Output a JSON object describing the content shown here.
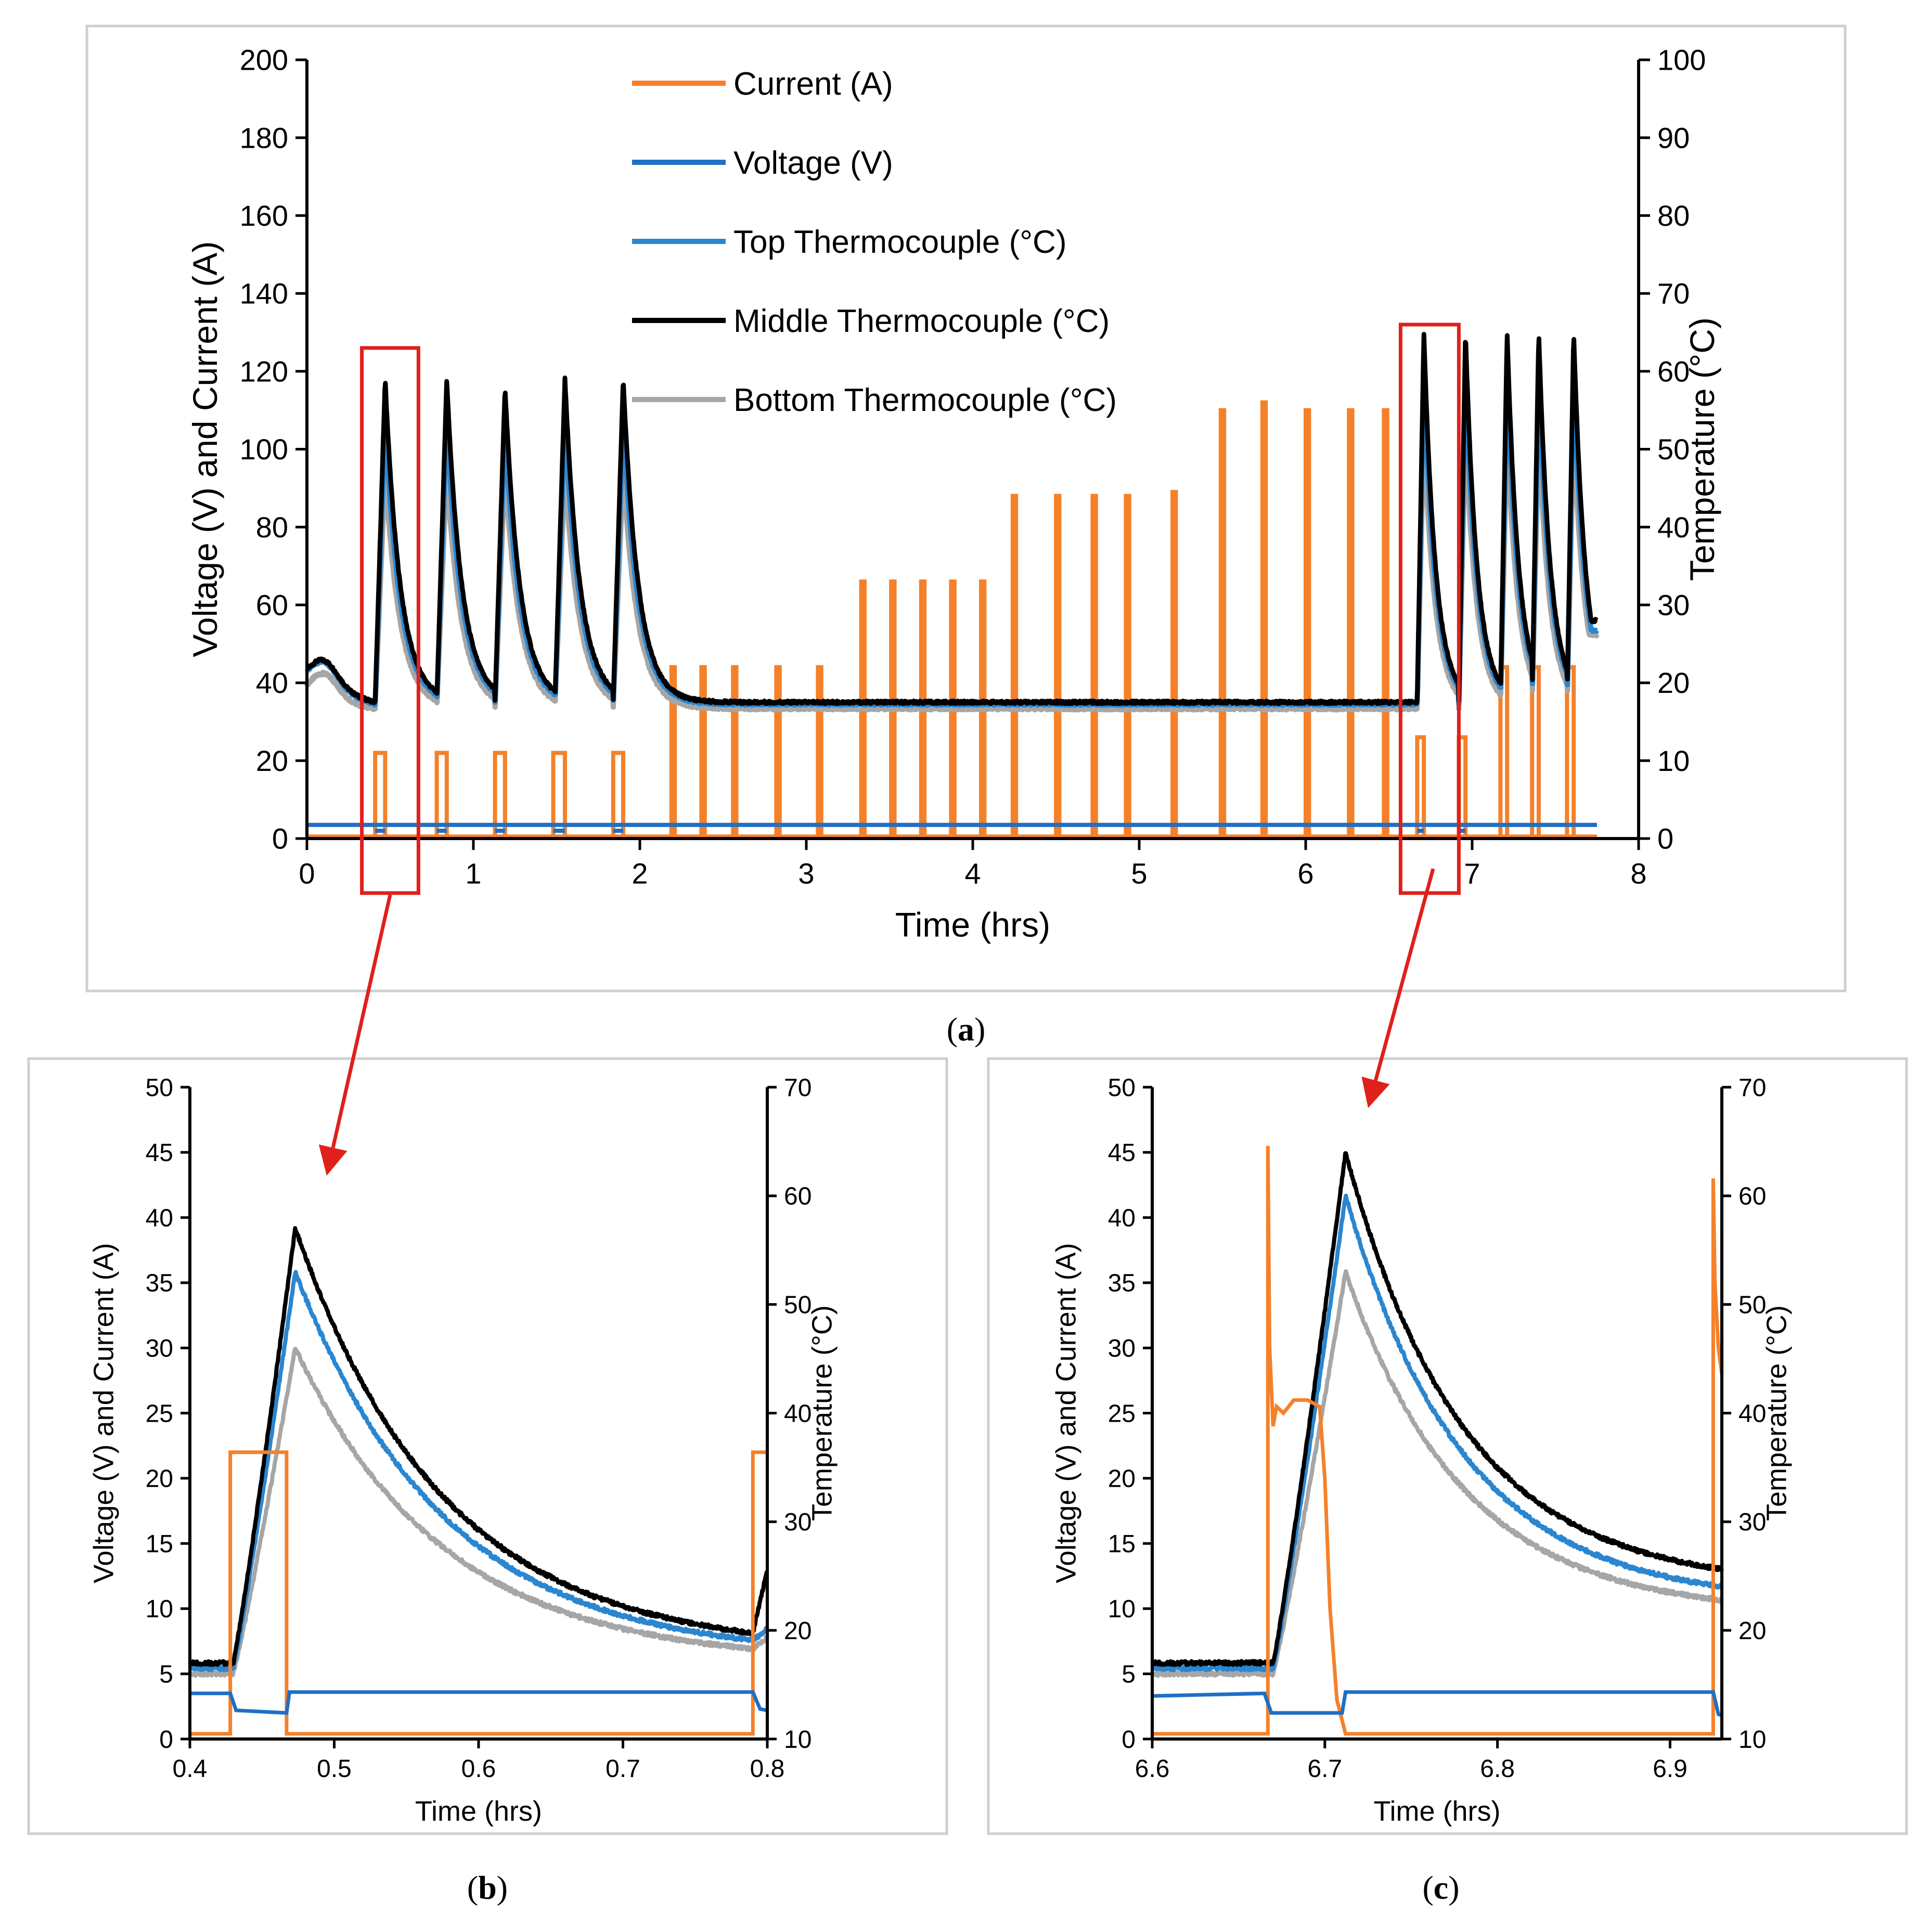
{
  "captions": {
    "a": "(a)",
    "b": "(b)",
    "c": "(c)",
    "bold_a": "a",
    "bold_b": "b",
    "bold_c": "c"
  },
  "colors": {
    "current": "#f4812a",
    "voltage": "#1f6fc5",
    "top_tc": "#2b86d0",
    "middle_tc": "#000000",
    "bottom_tc": "#a6a6a6",
    "highlight": "#e0201b"
  },
  "chart_data": [
    {
      "id": "a",
      "type": "line",
      "title": "",
      "xlabel": "Time (hrs)",
      "ylabel": "Voltage (V) and Current (A)",
      "y2label": "Temperature (°C)",
      "xlim": [
        0,
        8
      ],
      "ylim": [
        0,
        200
      ],
      "y2lim": [
        0,
        100
      ],
      "xticks": [
        0,
        1,
        2,
        3,
        4,
        5,
        6,
        7,
        8
      ],
      "yticks": [
        0,
        20,
        40,
        60,
        80,
        100,
        120,
        140,
        160,
        180,
        200
      ],
      "y2ticks": [
        0,
        10,
        20,
        30,
        40,
        50,
        60,
        70,
        80,
        90,
        100
      ],
      "legend_position": "top-center",
      "legend": [
        "Current (A)",
        "Voltage (V)",
        "Top Thermocouple (°C)",
        "Middle Thermocouple (°C)",
        "Bottom Thermocouple (°C)"
      ],
      "current_pulses": [
        {
          "start": 0.41,
          "end": 0.47,
          "amp": 22
        },
        {
          "start": 0.78,
          "end": 0.84,
          "amp": 22
        },
        {
          "start": 1.13,
          "end": 1.19,
          "amp": 22
        },
        {
          "start": 1.48,
          "end": 1.55,
          "amp": 22
        },
        {
          "start": 1.84,
          "end": 1.9,
          "amp": 22
        },
        {
          "start": 2.19,
          "end": 2.21,
          "amp": 44
        },
        {
          "start": 2.37,
          "end": 2.39,
          "amp": 44
        },
        {
          "start": 2.56,
          "end": 2.58,
          "amp": 44
        },
        {
          "start": 2.82,
          "end": 2.84,
          "amp": 44
        },
        {
          "start": 3.07,
          "end": 3.09,
          "amp": 44
        },
        {
          "start": 3.33,
          "end": 3.35,
          "amp": 66
        },
        {
          "start": 3.51,
          "end": 3.53,
          "amp": 66
        },
        {
          "start": 3.69,
          "end": 3.71,
          "amp": 66
        },
        {
          "start": 3.87,
          "end": 3.89,
          "amp": 66
        },
        {
          "start": 4.05,
          "end": 4.07,
          "amp": 66
        },
        {
          "start": 4.24,
          "end": 4.26,
          "amp": 88
        },
        {
          "start": 4.5,
          "end": 4.52,
          "amp": 88
        },
        {
          "start": 4.72,
          "end": 4.74,
          "amp": 88
        },
        {
          "start": 4.92,
          "end": 4.94,
          "amp": 88
        },
        {
          "start": 5.2,
          "end": 5.22,
          "amp": 89
        },
        {
          "start": 5.49,
          "end": 5.51,
          "amp": 110
        },
        {
          "start": 5.74,
          "end": 5.76,
          "amp": 112
        },
        {
          "start": 6.0,
          "end": 6.02,
          "amp": 110
        },
        {
          "start": 6.26,
          "end": 6.28,
          "amp": 110
        },
        {
          "start": 6.47,
          "end": 6.49,
          "amp": 110
        },
        {
          "start": 6.67,
          "end": 6.71,
          "amp": 26
        },
        {
          "start": 6.92,
          "end": 6.96,
          "amp": 26
        },
        {
          "start": 7.17,
          "end": 7.21,
          "amp": 44
        },
        {
          "start": 7.36,
          "end": 7.4,
          "amp": 44
        },
        {
          "start": 7.57,
          "end": 7.61,
          "amp": 44
        }
      ],
      "voltage_level": 3.5,
      "voltage_dip": 2,
      "temperature_peaks": [
        {
          "t": 0.47,
          "middle": 59,
          "top": 54,
          "bottom": 48
        },
        {
          "t": 0.84,
          "middle": 59,
          "top": 54,
          "bottom": 48
        },
        {
          "t": 1.19,
          "middle": 58,
          "top": 53,
          "bottom": 48
        },
        {
          "t": 1.55,
          "middle": 59,
          "top": 54,
          "bottom": 48
        },
        {
          "t": 1.9,
          "middle": 59,
          "top": 54,
          "bottom": 48
        },
        {
          "t": 6.71,
          "middle": 65,
          "top": 60,
          "bottom": 53
        },
        {
          "t": 6.96,
          "middle": 65,
          "top": 60,
          "bottom": 53
        },
        {
          "t": 7.21,
          "middle": 65,
          "top": 60,
          "bottom": 53
        },
        {
          "t": 7.4,
          "middle": 65,
          "top": 60,
          "bottom": 53
        },
        {
          "t": 7.61,
          "middle": 65,
          "top": 60,
          "bottom": 53
        }
      ],
      "temperature_baseline": 17.5,
      "temperature_start": 20,
      "temperature_end": 27,
      "highlight_boxes": [
        {
          "x0": 0.33,
          "x1": 0.67,
          "y0": -14,
          "y1": 126
        },
        {
          "x0": 6.57,
          "x1": 6.92,
          "y0": -14,
          "y1": 132
        }
      ]
    },
    {
      "id": "b",
      "type": "line",
      "xlabel": "Time (hrs)",
      "ylabel": "Voltage (V) and Current (A)",
      "y2label": "Temperature (°C)",
      "xlim": [
        0.4,
        0.8
      ],
      "ylim": [
        0,
        50
      ],
      "y2lim": [
        10,
        70
      ],
      "xticks": [
        "0.4",
        "0.5",
        "0.6",
        "0.7",
        "0.8"
      ],
      "yticks": [
        0,
        5,
        10,
        15,
        20,
        25,
        30,
        35,
        40,
        45,
        50
      ],
      "y2ticks": [
        10,
        20,
        30,
        40,
        50,
        60,
        70
      ],
      "current": {
        "x": [
          0.4,
          0.428,
          0.428,
          0.467,
          0.467,
          0.79,
          0.79,
          0.8
        ],
        "y": [
          0.4,
          0.4,
          22,
          22,
          0.4,
          0.4,
          22,
          22
        ]
      },
      "voltage": {
        "x": [
          0.4,
          0.428,
          0.432,
          0.467,
          0.469,
          0.79,
          0.795,
          0.8
        ],
        "y": [
          3.5,
          3.5,
          2.2,
          2.0,
          3.6,
          3.6,
          2.3,
          2.2
        ]
      },
      "temp_peak_t": 0.473,
      "temp_rise_t": 0.43,
      "temp_middle": {
        "base": 17,
        "peak": 57,
        "end": 18
      },
      "temp_top": {
        "base": 16.5,
        "peak": 53,
        "end": 17.5
      },
      "temp_bottom": {
        "base": 16,
        "peak": 46,
        "end": 17
      }
    },
    {
      "id": "c",
      "type": "line",
      "xlabel": "Time (hrs)",
      "ylabel": "Voltage (V) and Current (A)",
      "y2label": "Temperature (°C)",
      "xlim": [
        6.6,
        6.93
      ],
      "ylim": [
        0,
        50
      ],
      "y2lim": [
        10,
        70
      ],
      "xticks": [
        "6.6",
        "6.7",
        "6.8",
        "6.9"
      ],
      "yticks": [
        0,
        5,
        10,
        15,
        20,
        25,
        30,
        35,
        40,
        45,
        50
      ],
      "y2ticks": [
        10,
        20,
        30,
        40,
        50,
        60,
        70
      ],
      "current": {
        "x": [
          6.6,
          6.667,
          6.667,
          6.668,
          6.669,
          6.67,
          6.672,
          6.676,
          6.682,
          6.69,
          6.697,
          6.7,
          6.703,
          6.707,
          6.712,
          6.925,
          6.925,
          6.926,
          6.928,
          6.93
        ],
        "y": [
          0.4,
          0.4,
          45.5,
          30,
          27,
          24,
          25.5,
          25,
          26,
          26,
          25.5,
          20,
          10,
          3,
          0.4,
          0.4,
          43,
          35,
          30,
          28
        ]
      },
      "voltage": {
        "x": [
          6.6,
          6.665,
          6.669,
          6.71,
          6.712,
          6.925,
          6.928,
          6.93
        ],
        "y": [
          3.3,
          3.5,
          2.0,
          2.0,
          3.6,
          3.6,
          1.9,
          1.8
        ]
      },
      "temp_peak_t": 6.712,
      "temp_rise_t": 6.67,
      "temp_middle": {
        "base": 17,
        "peak": 64,
        "end": 24
      },
      "temp_top": {
        "base": 16.5,
        "peak": 60,
        "end": 22.5
      },
      "temp_bottom": {
        "base": 16,
        "peak": 53,
        "end": 21.5
      }
    }
  ]
}
